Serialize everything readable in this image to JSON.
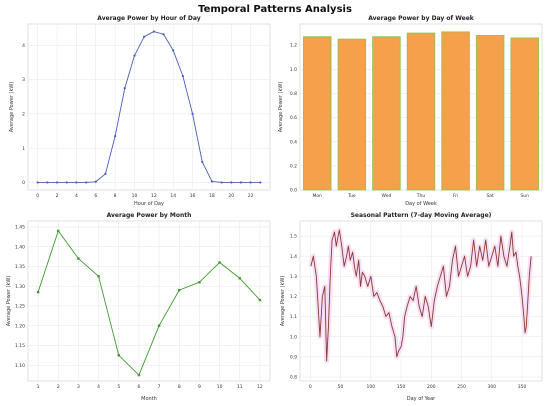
{
  "figure_title": "Temporal Patterns Analysis",
  "colors": {
    "hour_line": "#4a5fb0",
    "bar_fill": "#f5a04a",
    "bar_edge": "#8bc34a",
    "month_line": "#3d9a2e",
    "seasonal_line": "#8b3a2e",
    "seasonal_shadow": "#f6dcf6"
  },
  "chart_data": [
    {
      "type": "line",
      "title": "Average Power by Hour of Day",
      "xlabel": "Hour of Day",
      "ylabel": "Average Power (kW)",
      "x": [
        0,
        1,
        2,
        3,
        4,
        5,
        6,
        7,
        8,
        9,
        10,
        11,
        12,
        13,
        14,
        15,
        16,
        17,
        18,
        19,
        20,
        21,
        22,
        23
      ],
      "values": [
        0,
        0,
        0,
        0,
        0,
        0,
        0.02,
        0.25,
        1.35,
        2.75,
        3.7,
        4.25,
        4.4,
        4.32,
        3.85,
        3.1,
        2.0,
        0.6,
        0.03,
        0,
        0,
        0,
        0,
        0
      ],
      "xticks": [
        "0",
        "2",
        "4",
        "6",
        "8",
        "10",
        "12",
        "14",
        "16",
        "18",
        "20",
        "22"
      ],
      "xtick_values": [
        0,
        2,
        4,
        6,
        8,
        10,
        12,
        14,
        16,
        18,
        20,
        22
      ],
      "yticks": [
        "0",
        "1",
        "2",
        "3",
        "4"
      ],
      "ytick_values": [
        0,
        1,
        2,
        3,
        4
      ],
      "xlim": [
        -1,
        24
      ],
      "ylim": [
        -0.22,
        4.62
      ],
      "grid": true,
      "marker": "circle"
    },
    {
      "type": "bar",
      "title": "Average Power by Day of Week",
      "xlabel": "Day of Week",
      "ylabel": "Average Power (kW)",
      "categories": [
        "Mon",
        "Tue",
        "Wed",
        "Thu",
        "Fri",
        "Sat",
        "Sun"
      ],
      "values": [
        1.27,
        1.25,
        1.27,
        1.3,
        1.31,
        1.28,
        1.26
      ],
      "yticks": [
        "0.0",
        "0.2",
        "0.4",
        "0.6",
        "0.8",
        "1.0",
        "1.2"
      ],
      "ytick_values": [
        0,
        0.2,
        0.4,
        0.6,
        0.8,
        1.0,
        1.2
      ],
      "ylim": [
        0,
        1.375
      ],
      "grid": true
    },
    {
      "type": "line",
      "title": "Average Power by Month",
      "xlabel": "Month",
      "ylabel": "Average Power (kW)",
      "x": [
        1,
        2,
        3,
        4,
        5,
        6,
        7,
        8,
        9,
        10,
        11,
        12
      ],
      "values": [
        1.285,
        1.44,
        1.37,
        1.325,
        1.125,
        1.075,
        1.2,
        1.29,
        1.31,
        1.36,
        1.32,
        1.265
      ],
      "xticks": [
        "1",
        "2",
        "3",
        "4",
        "5",
        "6",
        "7",
        "8",
        "9",
        "10",
        "11",
        "12"
      ],
      "xtick_values": [
        1,
        2,
        3,
        4,
        5,
        6,
        7,
        8,
        9,
        10,
        11,
        12
      ],
      "yticks": [
        "1.10",
        "1.15",
        "1.20",
        "1.25",
        "1.30",
        "1.35",
        "1.40",
        "1.45"
      ],
      "ytick_values": [
        1.1,
        1.15,
        1.2,
        1.25,
        1.3,
        1.35,
        1.4,
        1.45
      ],
      "xlim": [
        0.5,
        12.5
      ],
      "ylim": [
        1.06,
        1.465
      ],
      "grid": true,
      "marker": "square"
    },
    {
      "type": "line",
      "title": "Seasonal Pattern (7-day Moving Average)",
      "xlabel": "Day of Year",
      "ylabel": "Average Power (kW)",
      "x": [
        1,
        5,
        10,
        13,
        16,
        20,
        24,
        27,
        30,
        33,
        36,
        40,
        43,
        46,
        48,
        52,
        56,
        60,
        63,
        66,
        70,
        73,
        76,
        80,
        83,
        86,
        90,
        95,
        100,
        105,
        110,
        115,
        120,
        125,
        130,
        135,
        140,
        143,
        146,
        150,
        153,
        156,
        160,
        165,
        170,
        175,
        180,
        185,
        190,
        195,
        200,
        205,
        210,
        215,
        220,
        225,
        230,
        235,
        240,
        245,
        250,
        255,
        260,
        265,
        270,
        275,
        280,
        285,
        290,
        295,
        300,
        305,
        310,
        315,
        320,
        325,
        330,
        333,
        336,
        340,
        343,
        346,
        350,
        353,
        355,
        357,
        360,
        362,
        365
      ],
      "values": [
        1.35,
        1.4,
        1.3,
        1.15,
        1.0,
        1.2,
        1.25,
        0.88,
        1.05,
        1.3,
        1.48,
        1.52,
        1.45,
        1.5,
        1.53,
        1.45,
        1.35,
        1.4,
        1.45,
        1.38,
        1.42,
        1.35,
        1.3,
        1.38,
        1.25,
        1.32,
        1.3,
        1.25,
        1.3,
        1.2,
        1.22,
        1.18,
        1.15,
        1.1,
        1.12,
        1.05,
        1.0,
        0.9,
        0.93,
        0.95,
        1.0,
        1.1,
        1.15,
        1.2,
        1.18,
        1.25,
        1.15,
        1.1,
        1.2,
        1.15,
        1.05,
        1.18,
        1.25,
        1.3,
        1.35,
        1.2,
        1.25,
        1.38,
        1.45,
        1.3,
        1.35,
        1.4,
        1.3,
        1.35,
        1.48,
        1.35,
        1.45,
        1.38,
        1.48,
        1.35,
        1.4,
        1.45,
        1.35,
        1.5,
        1.4,
        1.35,
        1.45,
        1.52,
        1.4,
        1.42,
        1.35,
        1.3,
        1.2,
        1.1,
        1.02,
        1.05,
        1.2,
        1.3,
        1.4
      ],
      "xticks": [
        "0",
        "50",
        "100",
        "150",
        "200",
        "250",
        "300",
        "350"
      ],
      "xtick_values": [
        0,
        50,
        100,
        150,
        200,
        250,
        300,
        350
      ],
      "yticks": [
        "0.8",
        "0.9",
        "1.0",
        "1.1",
        "1.2",
        "1.3",
        "1.4",
        "1.5"
      ],
      "ytick_values": [
        0.8,
        0.9,
        1.0,
        1.1,
        1.2,
        1.3,
        1.4,
        1.5
      ],
      "xlim": [
        -17,
        383
      ],
      "ylim": [
        0.78,
        1.575
      ],
      "grid": true
    }
  ]
}
